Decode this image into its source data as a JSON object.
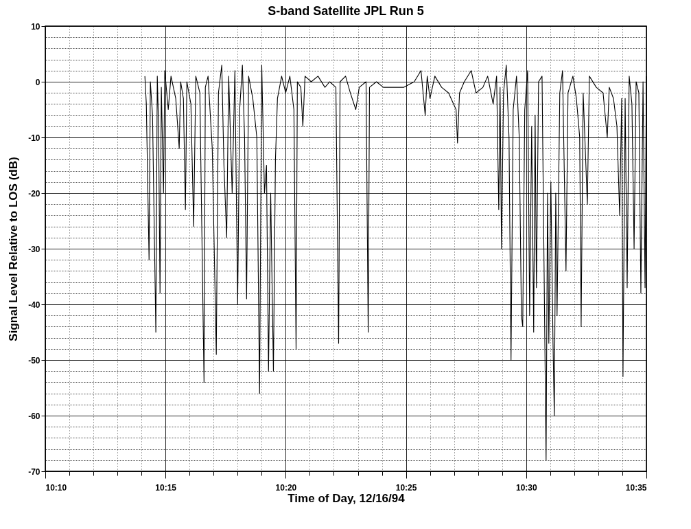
{
  "chart_data": {
    "type": "line",
    "title": "S-band Satellite JPL Run 5",
    "xlabel": "Time of Day, 12/16/94",
    "ylabel": "Signal Level Relative to LOS (dB)",
    "xlim": [
      10.16667,
      10.58333
    ],
    "xticks": [
      {
        "value": 10.16667,
        "label": "10:10"
      },
      {
        "value": 10.25,
        "label": "10:15"
      },
      {
        "value": 10.33333,
        "label": "10:20"
      },
      {
        "value": 10.41667,
        "label": "10:25"
      },
      {
        "value": 10.5,
        "label": "10:30"
      },
      {
        "value": 10.58333,
        "label": "10:35"
      }
    ],
    "ylim": [
      -70,
      10
    ],
    "yticks": [
      10,
      0,
      -10,
      -20,
      -30,
      -40,
      -50,
      -60,
      -70
    ],
    "grid": true,
    "line_style": "solid",
    "marker": "none",
    "series": [
      {
        "color": "#000000",
        "x": [
          10.2357,
          10.2367,
          10.2386,
          10.2395,
          10.241,
          10.2433,
          10.2443,
          10.2452,
          10.2462,
          10.2471,
          10.2486,
          10.2495,
          10.2519,
          10.2538,
          10.2571,
          10.2595,
          10.2605,
          10.2624,
          10.2638,
          10.2648,
          10.2676,
          10.2695,
          10.271,
          10.2738,
          10.2767,
          10.2776,
          10.2795,
          10.2824,
          10.2852,
          10.2867,
          10.289,
          10.2905,
          10.2924,
          10.2938,
          10.2962,
          10.2981,
          10.3,
          10.3014,
          10.3033,
          10.3048,
          10.3062,
          10.3076,
          10.3105,
          10.3133,
          10.3152,
          10.3167,
          10.3186,
          10.32,
          10.3214,
          10.3229,
          10.3248,
          10.3262,
          10.3276,
          10.3305,
          10.3333,
          10.3362,
          10.339,
          10.3405,
          10.3414,
          10.3438,
          10.3452,
          10.3467,
          10.351,
          10.3557,
          10.3605,
          10.3638,
          10.3681,
          10.37,
          10.371,
          10.3748,
          10.3781,
          10.3819,
          10.3843,
          10.389,
          10.3905,
          10.3914,
          10.3962,
          10.401,
          10.4081,
          10.4152,
          10.4224,
          10.4271,
          10.43,
          10.4314,
          10.4333,
          10.4367,
          10.4414,
          10.4462,
          10.4514,
          10.4524,
          10.4538,
          10.4571,
          10.4619,
          10.4652,
          10.47,
          10.4733,
          10.4771,
          10.4795,
          10.481,
          10.4819,
          10.4829,
          10.4843,
          10.4862,
          10.4881,
          10.4895,
          10.491,
          10.4933,
          10.4952,
          10.4967,
          10.4976,
          10.499,
          10.501,
          10.5024,
          10.5038,
          10.5052,
          10.5062,
          10.5071,
          10.5086,
          10.511,
          10.5138,
          10.5148,
          10.5157,
          10.5171,
          10.5186,
          10.5195,
          10.5205,
          10.5214,
          10.5233,
          10.5252,
          10.5276,
          10.529,
          10.5324,
          10.5348,
          10.5371,
          10.5381,
          10.5395,
          10.5424,
          10.5438,
          10.5486,
          10.5533,
          10.5562,
          10.5576,
          10.5605,
          10.5629,
          10.5648,
          10.5662,
          10.5671,
          10.5686,
          10.57,
          10.5714,
          10.5733,
          10.5748,
          10.5762,
          10.5781,
          10.5795,
          10.581,
          10.5824,
          10.5833
        ],
        "values": [
          1,
          -4,
          -32,
          0,
          -6,
          -45,
          1,
          -8,
          -38,
          -1,
          -20,
          2,
          -5,
          1,
          -3,
          -12,
          0,
          -3,
          -23,
          0,
          -4,
          -26,
          1,
          -2,
          -54,
          -1,
          1,
          -12,
          -49,
          -2,
          3,
          -15,
          -28,
          1,
          -20,
          2,
          -40,
          -5,
          3,
          -10,
          -39,
          1,
          -3,
          -10,
          -56,
          3,
          -20,
          -15,
          -52,
          -20,
          -52,
          -14,
          -3,
          1,
          -2,
          1,
          -5,
          -48,
          0,
          -1,
          -8,
          1,
          0,
          1,
          -1,
          0,
          -1,
          -47,
          0,
          1,
          -2,
          -5,
          -1,
          0,
          -45,
          -1,
          0,
          -1,
          -1,
          -1,
          0,
          2,
          -6,
          1,
          -3,
          1,
          -1,
          -2,
          -5,
          -11,
          -2,
          0,
          2,
          -2,
          -1,
          1,
          -4,
          1,
          -23,
          -1,
          -30,
          -2,
          3,
          -10,
          -50,
          -5,
          1,
          -10,
          -42,
          -44,
          -5,
          2,
          -42,
          -8,
          -45,
          -6,
          -37,
          0,
          1,
          -68,
          -20,
          -47,
          -18,
          -47,
          -60,
          -20,
          -42,
          -2,
          2,
          -34,
          -2,
          1,
          -3,
          -10,
          -44,
          -2,
          -22,
          1,
          -1,
          -2,
          -10,
          -1,
          -3,
          -8,
          -24,
          -3,
          -53,
          -3,
          -37,
          1,
          -4,
          -30,
          0,
          -2,
          -38,
          0,
          -37,
          1
        ]
      }
    ]
  }
}
